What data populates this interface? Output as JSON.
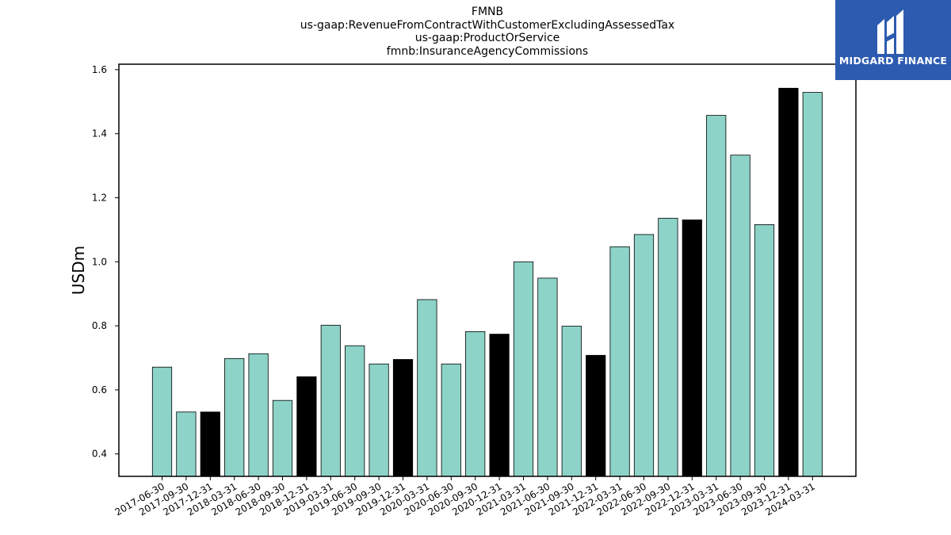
{
  "title_lines": [
    "FMNB",
    "us-gaap:RevenueFromContractWithCustomerExcludingAssessedTax",
    "us-gaap:ProductOrService",
    "fmnb:InsuranceAgencyCommissions"
  ],
  "logo": {
    "text": "MIDGARD FINANCE",
    "background": "#2d5bb0"
  },
  "colors": {
    "regular_bar": "#8dd3c7",
    "year_end_bar": "#000000"
  },
  "chart_data": {
    "type": "bar",
    "title": "FMNB us-gaap:RevenueFromContractWithCustomerExcludingAssessedTax us-gaap:ProductOrService fmnb:InsuranceAgencyCommissions",
    "xlabel": "",
    "ylabel": "USDm",
    "ylim": [
      0.33,
      1.617
    ],
    "yticks": [
      0.4,
      0.6,
      0.8,
      1.0,
      1.2,
      1.4,
      1.6
    ],
    "grid": false,
    "categories": [
      "2017-06-30",
      "2017-09-30",
      "2017-12-31",
      "2018-03-31",
      "2018-06-30",
      "2018-09-30",
      "2018-12-31",
      "2019-03-31",
      "2019-06-30",
      "2019-09-30",
      "2019-12-31",
      "2020-03-31",
      "2020-06-30",
      "2020-09-30",
      "2020-12-31",
      "2021-03-31",
      "2021-06-30",
      "2021-09-30",
      "2021-12-31",
      "2022-03-31",
      "2022-06-30",
      "2022-09-30",
      "2022-12-31",
      "2023-03-31",
      "2023-06-30",
      "2023-09-30",
      "2023-12-31",
      "2024-03-31"
    ],
    "values": [
      0.671,
      0.531,
      0.531,
      0.698,
      0.713,
      0.567,
      0.641,
      0.802,
      0.738,
      0.681,
      0.695,
      0.882,
      0.681,
      0.782,
      0.774,
      1.0,
      0.949,
      0.799,
      0.708,
      1.047,
      1.085,
      1.136,
      1.131,
      1.457,
      1.333,
      1.116,
      1.542,
      1.529
    ],
    "highlight": [
      false,
      false,
      true,
      false,
      false,
      false,
      true,
      false,
      false,
      false,
      true,
      false,
      false,
      false,
      true,
      false,
      false,
      false,
      true,
      false,
      false,
      false,
      true,
      false,
      false,
      false,
      true,
      false
    ]
  }
}
